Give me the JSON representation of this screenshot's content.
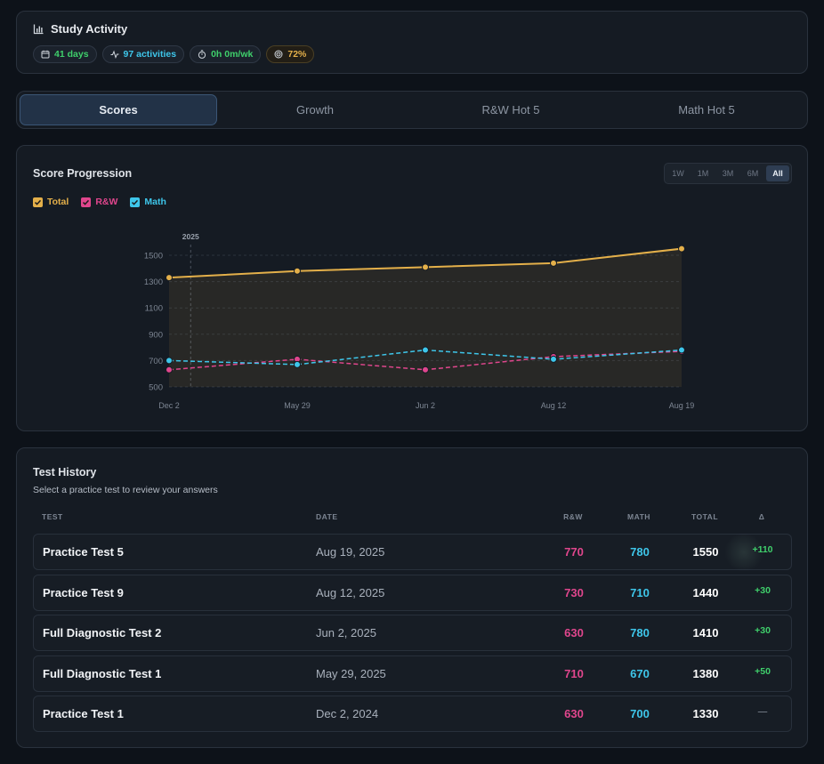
{
  "activity": {
    "title": "Study Activity",
    "icon": "bar-chart-icon",
    "badges": [
      {
        "icon": "calendar-icon",
        "label": "41 days"
      },
      {
        "icon": "activity-pulse-icon",
        "label": "97 activities"
      },
      {
        "icon": "stopwatch-icon",
        "label": "0h 0m/wk"
      },
      {
        "icon": "target-icon",
        "label": "72%"
      }
    ]
  },
  "tabs": [
    {
      "label": "Scores",
      "active": true
    },
    {
      "label": "Growth",
      "active": false
    },
    {
      "label": "R&W Hot 5",
      "active": false
    },
    {
      "label": "Math Hot 5",
      "active": false
    }
  ],
  "chart": {
    "title": "Score Progression",
    "ranges": [
      "1W",
      "1M",
      "3M",
      "6M",
      "All"
    ],
    "active_range": "All",
    "legend": [
      {
        "label": "Total",
        "color": "#e4b04a"
      },
      {
        "label": "R&W",
        "color": "#e0468d"
      },
      {
        "label": "Math",
        "color": "#3ec6ea"
      }
    ]
  },
  "chart_data": {
    "type": "line",
    "x": [
      "Dec 2",
      "May 29",
      "Jun 2",
      "Aug 12",
      "Aug 19"
    ],
    "x_dates": [
      "2024-12-02",
      "2025-05-29",
      "2025-06-02",
      "2025-08-12",
      "2025-08-19"
    ],
    "year_marker": {
      "label": "2025",
      "date": "2025-01-01"
    },
    "yticks": [
      500,
      700,
      900,
      1100,
      1300,
      1500
    ],
    "ylim": [
      500,
      1600
    ],
    "grid": true,
    "legend_position": "top-left",
    "series": [
      {
        "name": "Total",
        "color": "#e4b04a",
        "style": "solid",
        "area": true,
        "values": [
          1330,
          1380,
          1410,
          1440,
          1550
        ]
      },
      {
        "name": "R&W",
        "color": "#e0468d",
        "style": "dashed",
        "values": [
          630,
          710,
          630,
          730,
          770
        ]
      },
      {
        "name": "Math",
        "color": "#3ec6ea",
        "style": "dashed",
        "values": [
          700,
          670,
          780,
          710,
          780
        ]
      }
    ]
  },
  "history": {
    "title": "Test History",
    "subtitle": "Select a practice test to review your answers",
    "columns": [
      "TEST",
      "DATE",
      "R&W",
      "MATH",
      "TOTAL",
      "Δ"
    ],
    "rows": [
      {
        "test": "Practice Test 5",
        "date": "Aug 19, 2025",
        "rw": "770",
        "math": "780",
        "total": "1550",
        "delta": "+110"
      },
      {
        "test": "Practice Test 9",
        "date": "Aug 12, 2025",
        "rw": "730",
        "math": "710",
        "total": "1440",
        "delta": "+30"
      },
      {
        "test": "Full Diagnostic Test 2",
        "date": "Jun 2, 2025",
        "rw": "630",
        "math": "780",
        "total": "1410",
        "delta": "+30"
      },
      {
        "test": "Full Diagnostic Test 1",
        "date": "May 29, 2025",
        "rw": "710",
        "math": "670",
        "total": "1380",
        "delta": "+50"
      },
      {
        "test": "Practice Test 1",
        "date": "Dec 2, 2024",
        "rw": "630",
        "math": "700",
        "total": "1330",
        "delta": "—"
      }
    ]
  }
}
